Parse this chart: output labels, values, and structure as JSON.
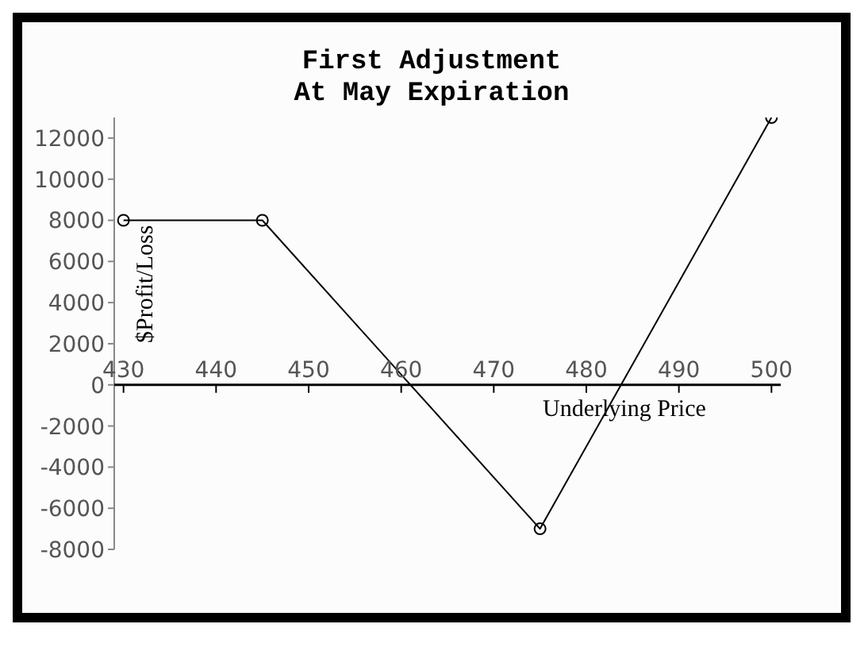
{
  "chart_data": {
    "type": "line",
    "title": "First Adjustment\nAt May Expiration",
    "xlabel": "Underlying Price",
    "ylabel": "$Profit/Loss",
    "x": [
      430,
      445,
      475,
      500
    ],
    "series": [
      {
        "color": "#000000",
        "values": [
          8000,
          8000,
          -7000,
          13000
        ]
      }
    ],
    "xlim": [
      429,
      501
    ],
    "xticks": [
      430,
      440,
      450,
      460,
      470,
      480,
      490,
      500
    ],
    "ylim": [
      -8000,
      13000
    ],
    "yticks": [
      -8000,
      -6000,
      -4000,
      -2000,
      0,
      2000,
      4000,
      6000,
      8000,
      10000,
      12000
    ],
    "marker": "circle",
    "line_style": "solid",
    "grid": false,
    "legend": false
  }
}
